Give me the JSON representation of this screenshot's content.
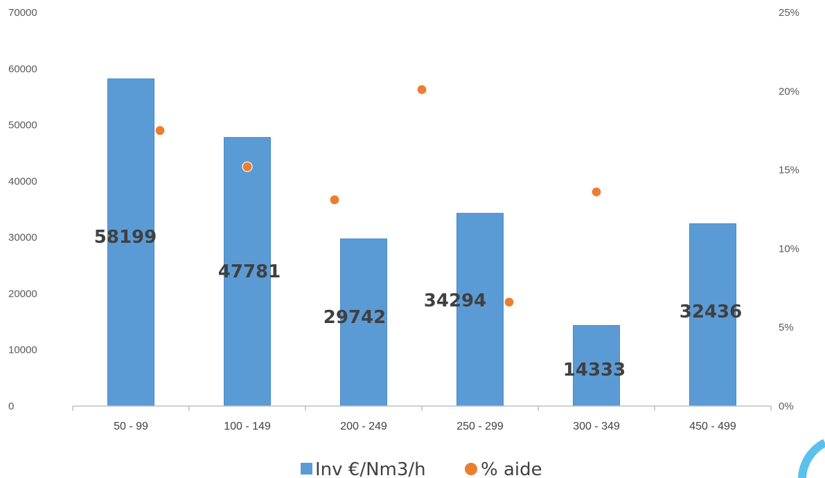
{
  "colors": {
    "bar": "#5b9bd5",
    "bar_edge": "#4a89c6",
    "dot": "#ed7d31",
    "axis": "#bfbfbf",
    "text": "#404040",
    "tick": "#595959",
    "corner_arc": "#5bc0eb"
  },
  "chart_data": {
    "type": "bar",
    "categories": [
      "50 - 99",
      "100 - 149",
      "200 - 249",
      "250 - 299",
      "300 - 349",
      "450 - 499"
    ],
    "series": [
      {
        "name": "Inv €/Nm3/h",
        "type": "bar",
        "axis": "left",
        "values": [
          58199,
          47781,
          29742,
          34294,
          14333,
          32436
        ],
        "data_labels": [
          "58199",
          "47781",
          "29742",
          "34294",
          "14333",
          "32436"
        ]
      },
      {
        "name": "% aide",
        "type": "scatter",
        "axis": "right",
        "values": [
          0.175,
          0.152,
          0.131,
          0.201,
          0.136,
          null
        ]
      }
    ],
    "left_axis": {
      "ylim": [
        0,
        70000
      ],
      "ticks": [
        0,
        10000,
        20000,
        30000,
        40000,
        50000,
        60000,
        70000
      ],
      "tick_labels": [
        "0",
        "10000",
        "20000",
        "30000",
        "40000",
        "50000",
        "60000",
        "70000"
      ]
    },
    "right_axis": {
      "ylim": [
        0,
        0.25
      ],
      "ticks": [
        0,
        0.05,
        0.1,
        0.15,
        0.2,
        0.25
      ],
      "tick_labels": [
        "0%",
        "5%",
        "10%",
        "15%",
        "20%",
        "25%"
      ]
    },
    "grid": false,
    "legend_position": "bottom"
  },
  "legend": {
    "bar_label": "Inv €/Nm3/h",
    "dot_label": "% aide"
  }
}
